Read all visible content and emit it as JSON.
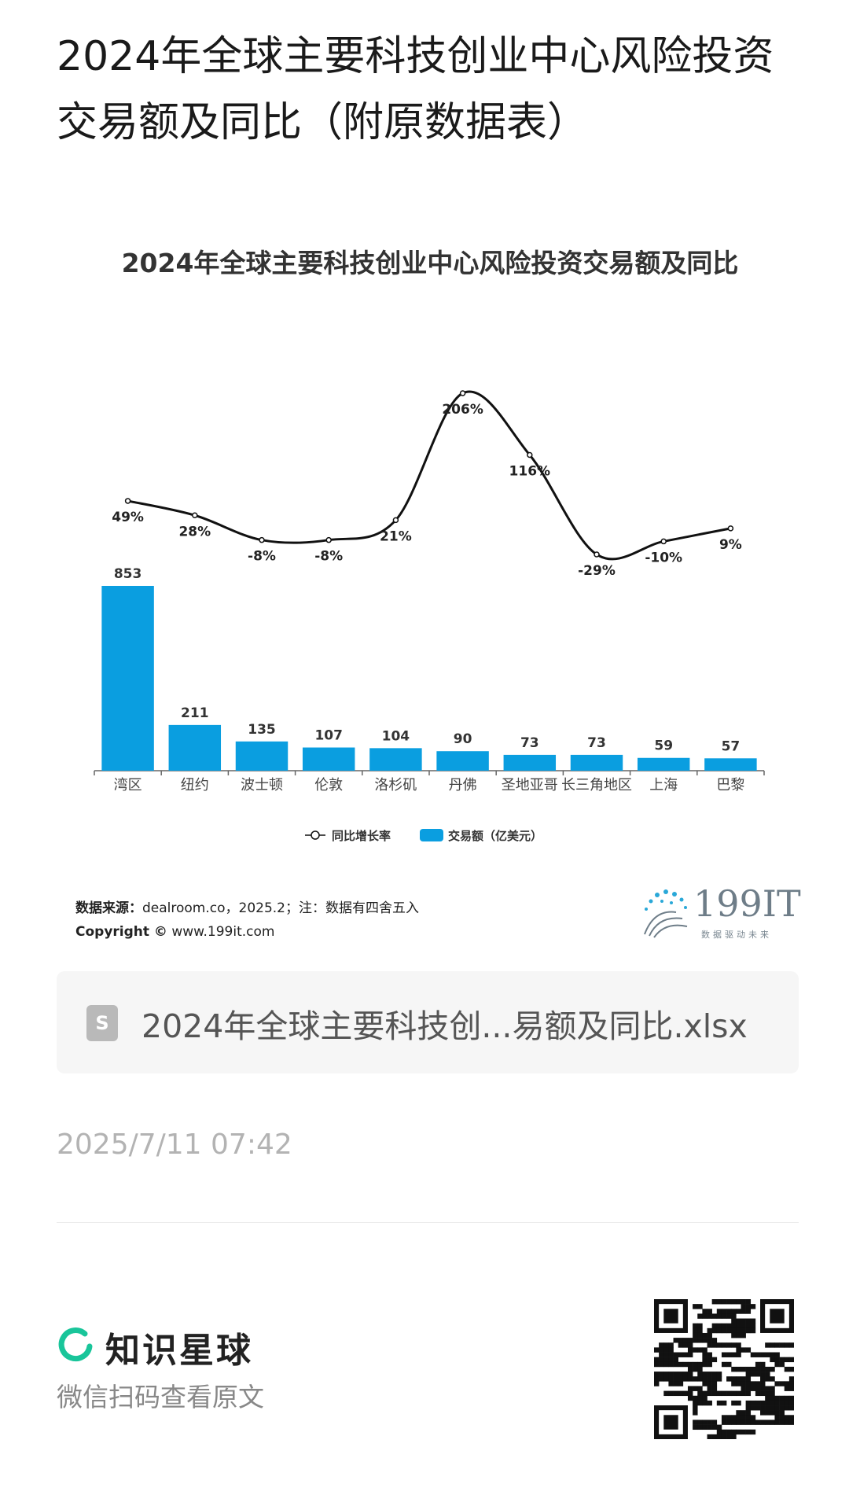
{
  "page": {
    "title": "2024年全球主要科技创业中心风险投资交易额及同比（附原数据表）"
  },
  "chart_data": {
    "type": "bar",
    "title": "2024年全球主要科技创业中心风险投资交易额及同比",
    "categories": [
      "湾区",
      "纽约",
      "波士顿",
      "伦敦",
      "洛杉矶",
      "丹佛",
      "圣地亚哥",
      "长三角地区",
      "上海",
      "巴黎"
    ],
    "series": [
      {
        "name": "交易额（亿美元）",
        "type": "bar",
        "values": [
          853,
          211,
          135,
          107,
          104,
          90,
          73,
          73,
          59,
          57
        ],
        "color": "#0a9ee0"
      },
      {
        "name": "同比增长率",
        "type": "line",
        "values": [
          49,
          28,
          -8,
          -8,
          21,
          206,
          116,
          -29,
          -10,
          9
        ],
        "labels": [
          "49%",
          "28%",
          "-8%",
          "-8%",
          "21%",
          "206%",
          "116%",
          "-29%",
          "-10%",
          "9%"
        ],
        "color": "#111111"
      }
    ],
    "legend": {
      "position": "bottom",
      "items": [
        "同比增长率",
        "交易额（亿美元）"
      ]
    },
    "grid": false
  },
  "source": {
    "label": "数据来源：",
    "text": "dealroom.co，2025.2；注：数据有四舍五入",
    "copyright_label": "Copyright ©",
    "copyright_text": "www.199it.com"
  },
  "watermark_logo": {
    "main": "199IT",
    "tagline": "数据驱动未来"
  },
  "file": {
    "icon": "spreadsheet-file-icon",
    "name": "2024年全球主要科技创...易额及同比.xlsx"
  },
  "timestamp": "2025/7/11 07:42",
  "brand": {
    "name": "知识星球",
    "logo_color": "#19c59a",
    "scan_text": "微信扫码查看原文"
  }
}
